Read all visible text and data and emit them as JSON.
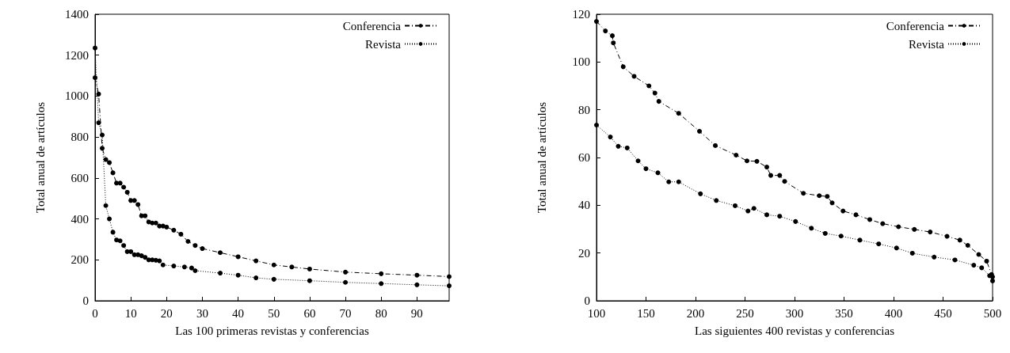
{
  "chart_data": [
    {
      "type": "line",
      "xlabel": "Las 100 primeras revistas y conferencias",
      "ylabel": "Total anual de artículos",
      "xlim": [
        0,
        99
      ],
      "xticks": [
        0,
        10,
        20,
        30,
        40,
        50,
        60,
        70,
        80,
        90
      ],
      "ylim": [
        0,
        1400
      ],
      "yticks": [
        0,
        200,
        400,
        600,
        800,
        1000,
        1200,
        1400
      ],
      "grid": false,
      "legend": "top right",
      "marker": "circle",
      "series": [
        {
          "name": "Conferencia",
          "color": "#000000",
          "line_style": "dashed",
          "x": [
            0,
            1,
            2,
            3,
            4,
            5,
            6,
            7,
            8,
            9,
            10,
            11,
            12,
            13,
            14,
            15,
            16,
            17,
            18,
            19,
            20,
            22,
            24,
            26,
            28,
            30,
            35,
            40,
            45,
            50,
            55,
            60,
            70,
            80,
            90,
            99
          ],
          "values": [
            1090,
            1010,
            745,
            690,
            675,
            625,
            575,
            575,
            555,
            530,
            490,
            490,
            470,
            415,
            415,
            385,
            380,
            380,
            365,
            365,
            360,
            345,
            325,
            290,
            270,
            255,
            235,
            215,
            195,
            175,
            165,
            155,
            140,
            132,
            125,
            118
          ]
        },
        {
          "name": "Revista",
          "color": "#000000",
          "line_style": "dotted",
          "x": [
            0,
            1,
            2,
            3,
            4,
            5,
            6,
            7,
            8,
            9,
            10,
            11,
            12,
            13,
            14,
            15,
            16,
            17,
            18,
            19,
            22,
            25,
            27,
            28,
            35,
            40,
            45,
            50,
            60,
            70,
            80,
            90,
            99
          ],
          "values": [
            1235,
            870,
            810,
            465,
            400,
            335,
            297,
            293,
            270,
            240,
            240,
            225,
            225,
            220,
            212,
            200,
            200,
            198,
            195,
            175,
            170,
            165,
            160,
            147,
            135,
            125,
            112,
            105,
            98,
            90,
            84,
            78,
            73
          ]
        }
      ]
    },
    {
      "type": "line",
      "xlabel": "Las siguientes 400 revistas y conferencias",
      "ylabel": "Total anual de artículos",
      "xlim": [
        100,
        500
      ],
      "xticks": [
        100,
        150,
        200,
        250,
        300,
        350,
        400,
        450,
        500
      ],
      "ylim": [
        0,
        120
      ],
      "yticks": [
        0,
        20,
        40,
        60,
        80,
        100,
        120
      ],
      "grid": false,
      "legend": "top right",
      "marker": "circle",
      "series": [
        {
          "name": "Conferencia",
          "color": "#000000",
          "line_style": "dashed",
          "x": [
            100,
            109,
            116,
            117,
            127,
            138,
            153,
            159,
            163,
            183,
            204,
            220,
            241,
            252,
            262,
            272,
            276,
            285,
            290,
            309,
            325,
            333,
            338,
            349,
            362,
            376,
            389,
            405,
            421,
            437,
            454,
            467,
            475,
            486,
            494,
            499,
            500
          ],
          "values": [
            117,
            113,
            111,
            108,
            98,
            94,
            90,
            87,
            83.5,
            78.5,
            71,
            65,
            61,
            58.6,
            58.4,
            56,
            52.5,
            52.5,
            50,
            45,
            44,
            43.7,
            41,
            37.6,
            36,
            34,
            32.3,
            31,
            29.9,
            28.8,
            27,
            25.4,
            23.2,
            19.4,
            16.6,
            11,
            10
          ]
        },
        {
          "name": "Revista",
          "color": "#000000",
          "line_style": "dotted",
          "x": [
            100,
            114,
            122,
            131,
            142,
            150,
            162,
            173,
            183,
            205,
            221,
            240,
            253,
            259,
            272,
            285,
            301,
            317,
            331,
            347,
            366,
            385,
            403,
            419,
            441,
            462,
            481,
            489,
            497,
            500
          ],
          "values": [
            73.6,
            68.6,
            64.7,
            64,
            58.6,
            55.3,
            53.6,
            49.8,
            49.8,
            44.8,
            42,
            39.8,
            37.6,
            38.7,
            36,
            35.4,
            33.2,
            30.4,
            28.2,
            27.1,
            25.4,
            23.8,
            22.1,
            19.9,
            18.3,
            17.1,
            14.9,
            13.8,
            10.5,
            8.3
          ]
        }
      ]
    }
  ]
}
